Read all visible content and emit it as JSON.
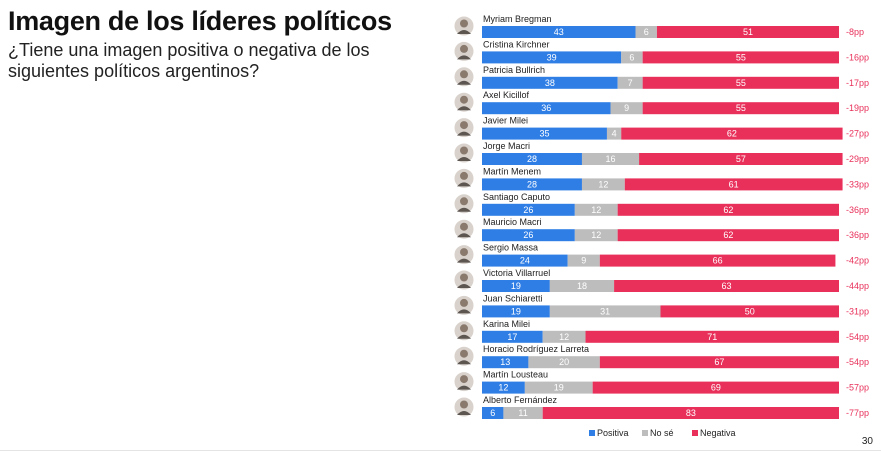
{
  "title": "Imagen de los líderes políticos",
  "subtitle": "¿Tiene una imagen positiva o negativa de los siguientes políticos argentinos?",
  "page_number": "30",
  "colors": {
    "positiva": "#2f7ee6",
    "no_se": "#bdbdbd",
    "negativa": "#e8305a",
    "diff": "#e8305a"
  },
  "chart_data": {
    "type": "bar",
    "orientation": "horizontal",
    "stacked": true,
    "categories": [
      "Myriam Bregman",
      "Cristina Kirchner",
      "Patricia Bullrich",
      "Axel Kicillof",
      "Javier Milei",
      "Jorge Macri",
      "Martín Menem",
      "Santiago Caputo",
      "Mauricio Macri",
      "Sergio Massa",
      "Victoria Villarruel",
      "Juan Schiaretti",
      "Karina Milei",
      "Horacio Rodríguez Larreta",
      "Martín Lousteau",
      "Alberto Fernández"
    ],
    "series": [
      {
        "name": "Positiva",
        "values": [
          43,
          39,
          38,
          36,
          35,
          28,
          28,
          26,
          26,
          24,
          19,
          19,
          17,
          13,
          12,
          6
        ]
      },
      {
        "name": "No sé",
        "values": [
          6,
          6,
          7,
          9,
          4,
          16,
          12,
          12,
          12,
          9,
          18,
          31,
          12,
          20,
          19,
          11
        ]
      },
      {
        "name": "Negativa",
        "values": [
          51,
          55,
          55,
          55,
          62,
          57,
          61,
          62,
          62,
          66,
          63,
          50,
          71,
          67,
          69,
          83
        ]
      }
    ],
    "differences": [
      "-8pp",
      "-16pp",
      "-17pp",
      "-19pp",
      "-27pp",
      "-29pp",
      "-33pp",
      "-36pp",
      "-36pp",
      "-42pp",
      "-44pp",
      "-31pp",
      "-54pp",
      "-54pp",
      "-57pp",
      "-77pp"
    ],
    "legend": [
      "Positiva",
      "No sé",
      "Negativa"
    ],
    "legend_position": "bottom"
  }
}
